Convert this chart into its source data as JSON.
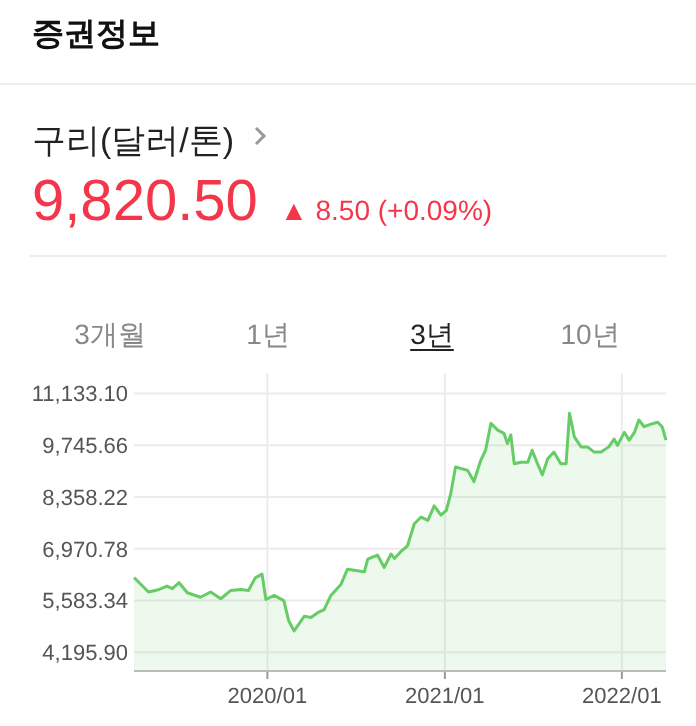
{
  "chart_data": {
    "type": "area",
    "title": "증권정보",
    "subtitle": "구리(달러/톤)",
    "annotations": [
      "9,820.50",
      "▲ 8.50 (+0.09%)",
      "3개월",
      "1년",
      "3년",
      "10년"
    ],
    "x": [
      "2019-04-01",
      "2019-05-01",
      "2019-05-23",
      "2019-06-08",
      "2019-06-19",
      "2019-07-03",
      "2019-07-20",
      "2019-08-16",
      "2019-09-06",
      "2019-09-27",
      "2019-10-17",
      "2019-11-07",
      "2019-11-23",
      "2019-12-07",
      "2019-12-21",
      "2019-12-29",
      "2020-01-15",
      "2020-02-04",
      "2020-02-14",
      "2020-02-25",
      "2020-03-17",
      "2020-03-31",
      "2020-04-13",
      "2020-04-27",
      "2020-05-11",
      "2020-06-01",
      "2020-06-14",
      "2020-07-05",
      "2020-07-19",
      "2020-07-26",
      "2020-08-15",
      "2020-08-29",
      "2020-09-12",
      "2020-09-19",
      "2020-10-02",
      "2020-10-16",
      "2020-10-30",
      "2020-11-13",
      "2020-11-27",
      "2020-12-10",
      "2020-12-24",
      "2021-01-04",
      "2021-01-13",
      "2021-01-23",
      "2021-02-17",
      "2021-03-02",
      "2021-03-16",
      "2021-03-26",
      "2021-04-06",
      "2021-04-20",
      "2021-05-03",
      "2021-05-10",
      "2021-05-17",
      "2021-05-24",
      "2021-06-07",
      "2021-06-21",
      "2021-06-30",
      "2021-07-11",
      "2021-07-21",
      "2021-08-01",
      "2021-08-14",
      "2021-08-28",
      "2021-09-08",
      "2021-09-15",
      "2021-09-25",
      "2021-10-09",
      "2021-10-22",
      "2021-11-05",
      "2021-11-19",
      "2021-12-05",
      "2021-12-16",
      "2021-12-23",
      "2022-01-06",
      "2022-01-16",
      "2022-01-27",
      "2022-02-05",
      "2022-02-16",
      "2022-03-02",
      "2022-03-16",
      "2022-03-25",
      "2022-04-02"
    ],
    "series": [
      {
        "color": "#66cc66",
        "values": [
          6200,
          5810,
          5880,
          5970,
          5900,
          6060,
          5790,
          5670,
          5810,
          5630,
          5850,
          5880,
          5850,
          6190,
          6290,
          5610,
          5720,
          5580,
          5040,
          4770,
          5160,
          5130,
          5250,
          5340,
          5720,
          6020,
          6420,
          6380,
          6350,
          6690,
          6800,
          6470,
          6830,
          6710,
          6890,
          7050,
          7640,
          7820,
          7730,
          8120,
          7870,
          8000,
          8440,
          9160,
          9070,
          8770,
          9340,
          9610,
          10330,
          10150,
          10060,
          9790,
          10020,
          9250,
          9290,
          9290,
          9610,
          9250,
          8950,
          9380,
          9560,
          9250,
          9250,
          10600,
          9970,
          9700,
          9700,
          9560,
          9560,
          9700,
          9910,
          9740,
          10090,
          9880,
          10090,
          10420,
          10240,
          10310,
          10360,
          10240,
          9880
        ]
      }
    ],
    "xlim": [
      "2019-04-01",
      "2022-04-02"
    ],
    "ylim": [
      3694,
      11133.1
    ],
    "xticks": [
      {
        "value": "2020-01-01",
        "label": "2020/01"
      },
      {
        "value": "2021-01-01",
        "label": "2021/01"
      },
      {
        "value": "2022-01-01",
        "label": "2022/01"
      }
    ],
    "yticks": [
      {
        "value": 4195.9,
        "label": "4,195.90"
      },
      {
        "value": 5583.34,
        "label": "5,583.34"
      },
      {
        "value": 6970.78,
        "label": "6,970.78"
      },
      {
        "value": 8358.22,
        "label": "8,358.22"
      },
      {
        "value": 9745.66,
        "label": "9,745.66"
      },
      {
        "value": 11133.1,
        "label": "11,133.10"
      }
    ],
    "grid": true
  }
}
